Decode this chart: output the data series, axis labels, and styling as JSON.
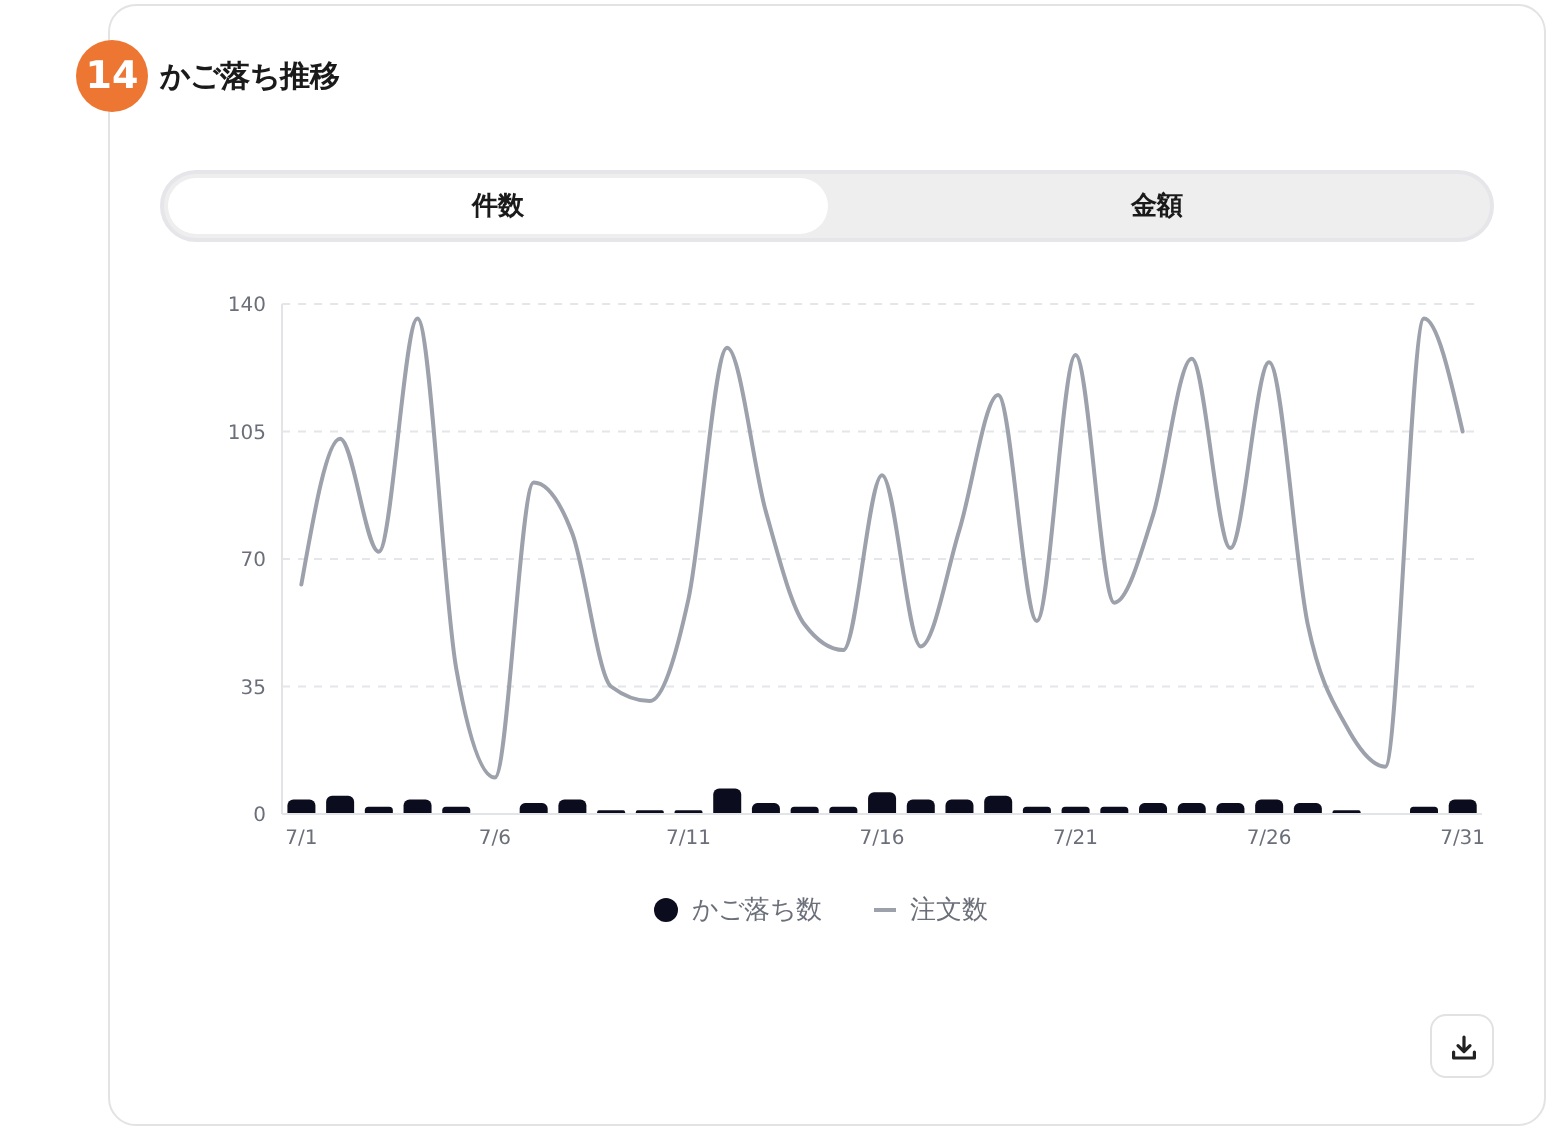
{
  "chart_data": {
    "type": "bar",
    "title": "かご落ち推移",
    "annotations": [
      "14",
      "件数",
      "金額"
    ],
    "categories": [
      "7/1",
      null,
      null,
      null,
      null,
      "7/6",
      null,
      null,
      null,
      null,
      "7/11",
      null,
      null,
      null,
      null,
      "7/16",
      null,
      null,
      null,
      null,
      "7/21",
      null,
      null,
      null,
      null,
      "7/26",
      null,
      null,
      null,
      null,
      "7/31"
    ],
    "series": [
      {
        "name": "かご落ち数",
        "color": "#0b0c1e",
        "values": [
          4,
          5,
          2,
          4,
          2,
          0,
          3,
          4,
          1,
          1,
          1,
          7,
          3,
          2,
          2,
          6,
          4,
          4,
          5,
          2,
          2,
          2,
          3,
          3,
          3,
          4,
          3,
          1,
          0,
          2,
          4
        ]
      },
      {
        "name": "注文数",
        "type": "line",
        "color": "#9ca1ab",
        "values": [
          63,
          103,
          72,
          136,
          40,
          10,
          91,
          77,
          35,
          31,
          59,
          128,
          83,
          52,
          45,
          93,
          46,
          78,
          115,
          53,
          126,
          58,
          82,
          125,
          73,
          124,
          52,
          24,
          13,
          136,
          105
        ]
      }
    ],
    "ylim": [
      0,
      140
    ],
    "yticks": [
      0,
      35,
      70,
      105,
      140
    ],
    "grid": "y",
    "legend": "bottom",
    "marker": "none"
  }
}
